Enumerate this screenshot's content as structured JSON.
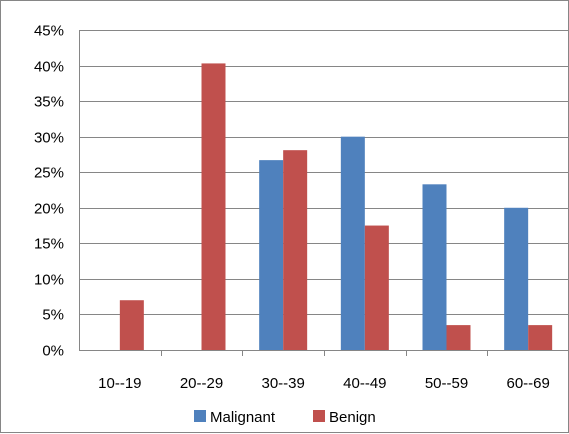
{
  "chart_data": {
    "type": "bar",
    "categories": [
      "10--19",
      "20--29",
      "30--39",
      "40--49",
      "50--59",
      "60--69"
    ],
    "series": [
      {
        "name": "Malignant",
        "values": [
          0,
          0,
          26.7,
          30.0,
          23.3,
          20.0
        ],
        "color": "#4F81BD"
      },
      {
        "name": "Benign",
        "values": [
          7.0,
          40.3,
          28.1,
          17.5,
          3.5,
          3.5
        ],
        "color": "#C0504D"
      }
    ],
    "yticks": [
      "0%",
      "5%",
      "10%",
      "15%",
      "20%",
      "25%",
      "30%",
      "35%",
      "40%",
      "45%"
    ],
    "ylim": [
      0,
      45
    ],
    "grid": true,
    "legend": "bottom",
    "title": "",
    "xlabel": "",
    "ylabel": ""
  }
}
